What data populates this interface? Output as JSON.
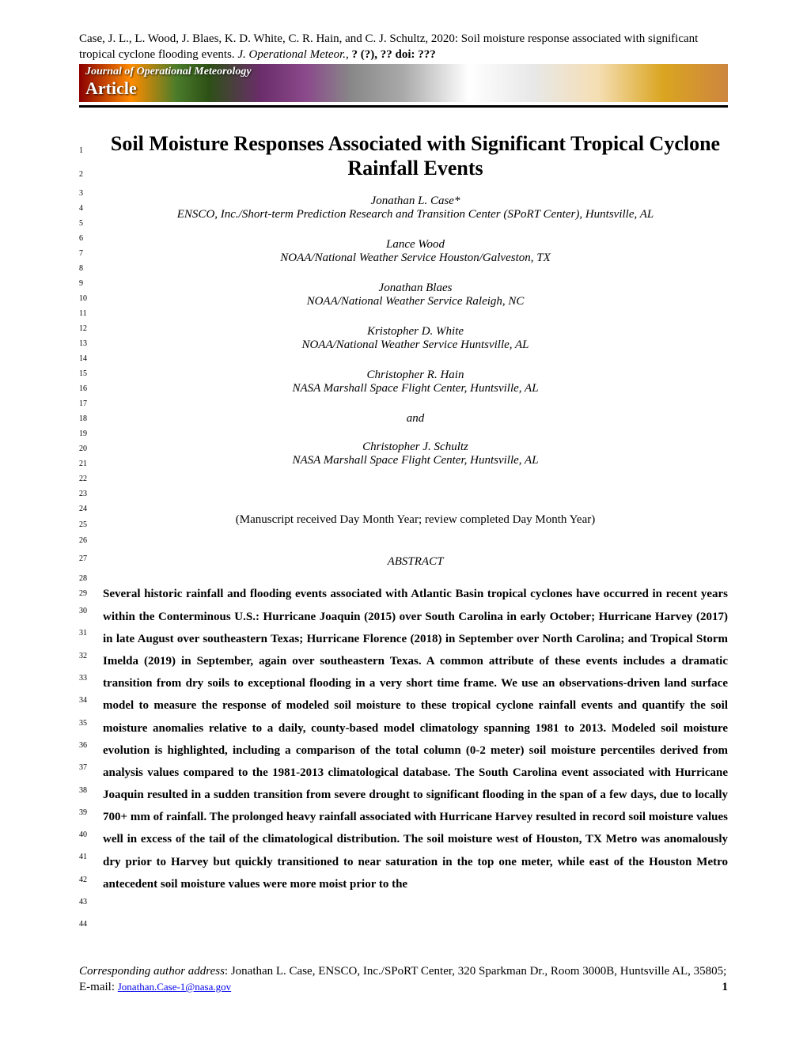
{
  "citation": {
    "authors": "Case, J. L., L. Wood, J. Blaes, K. D. White, C. R. Hain, and C. J. Schultz, 2020: Soil moisture response associated with significant tropical cyclone flooding events.",
    "journal": "J. Operational Meteor.,",
    "details": "? (?), ?? doi: ???"
  },
  "banner": {
    "journal_name": "Journal of Operational Meteorology",
    "type": "Article"
  },
  "title": "Soil Moisture Responses Associated with Significant Tropical Cyclone Rainfall Events",
  "authors": [
    {
      "name": "Jonathan L. Case*",
      "affiliation": "ENSCO, Inc./Short-term Prediction Research and Transition Center (SPoRT Center), Huntsville, AL"
    },
    {
      "name": "Lance Wood",
      "affiliation": "NOAA/National Weather Service Houston/Galveston, TX"
    },
    {
      "name": "Jonathan Blaes",
      "affiliation": "NOAA/National Weather Service Raleigh, NC"
    },
    {
      "name": "Kristopher D. White",
      "affiliation": "NOAA/National Weather Service Huntsville, AL"
    },
    {
      "name": "Christopher R. Hain",
      "affiliation": "NASA Marshall Space Flight Center, Huntsville, AL"
    }
  ],
  "and_text": "and",
  "last_author": {
    "name": "Christopher J. Schultz",
    "affiliation": "NASA Marshall Space Flight Center, Huntsville, AL"
  },
  "manuscript_info": "(Manuscript received Day Month Year; review completed Day Month Year)",
  "abstract_heading": "ABSTRACT",
  "abstract_text": "Several historic rainfall and flooding events associated with Atlantic Basin tropical cyclones have occurred in recent years within the Conterminous U.S.: Hurricane Joaquin (2015) over South Carolina in early October; Hurricane Harvey (2017) in late August over southeastern Texas; Hurricane Florence (2018) in September over North Carolina; and Tropical Storm Imelda (2019) in September, again over southeastern Texas.  A common attribute of these events includes a dramatic transition from dry soils to exceptional flooding in a very short time frame.  We use an observations-driven land surface model to measure the response of modeled soil moisture to these tropical cyclone rainfall events and quantify the soil moisture anomalies relative to a daily, county-based model climatology spanning 1981 to 2013. Modeled soil moisture evolution is highlighted, including a comparison of the total column (0-2 meter) soil moisture percentiles derived from analysis values compared to the 1981-2013 climatological database.  The South Carolina event associated with Hurricane Joaquin resulted in a sudden transition from severe drought to significant flooding in the span of a few days, due to locally 700+ mm of rainfall.  The prolonged heavy rainfall associated with Hurricane Harvey resulted in record soil moisture values well in excess of the tail of the climatological distribution.  The soil moisture west of Houston, TX Metro was anomalously dry prior to Harvey but quickly transitioned to near saturation in the top one meter, while east of the Houston Metro antecedent soil moisture values were more moist prior to the",
  "footer": {
    "label": "Corresponding author address",
    "text": ": Jonathan L. Case, ENSCO, Inc./SPoRT Center, 320 Sparkman Dr., Room 3000B, Huntsville AL, 35805; E-mail: ",
    "email": "Jonathan.Case-1@nasa.gov",
    "page_num": "1"
  },
  "line_numbers": {
    "start": 1,
    "end": 44
  }
}
